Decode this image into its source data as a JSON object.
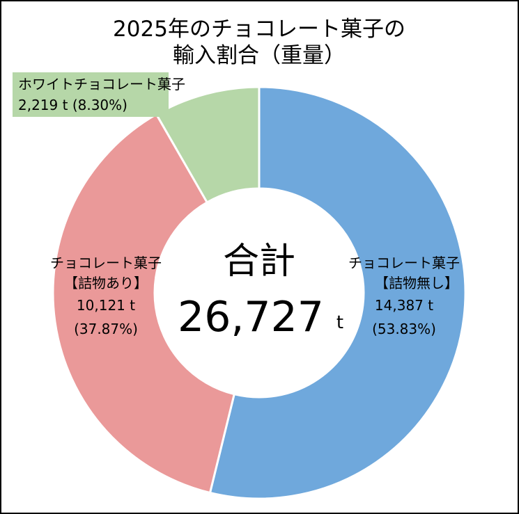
{
  "chart_data": {
    "type": "pie",
    "style": "donut",
    "title_lines": [
      "2025年のチョコレート菓子の",
      "輸入割合（重量）"
    ],
    "center": {
      "label": "合計",
      "value": "26,727",
      "unit": "t",
      "total": 26727
    },
    "series": [
      {
        "name": "チョコレート菓子【詰物無し】",
        "label_lines": [
          "チョコレート菓子",
          "【詰物無し】",
          "14,387 t",
          "(53.83%)"
        ],
        "value": 14387,
        "percent": 53.83,
        "color": "#6fa8dc"
      },
      {
        "name": "チョコレート菓子【詰物あり】",
        "label_lines": [
          "チョコレート菓子",
          "【詰物あり】",
          "10,121 t",
          "(37.87%)"
        ],
        "value": 10121,
        "percent": 37.87,
        "color": "#ea9999"
      },
      {
        "name": "ホワイトチョコレート菓子",
        "label_lines": [
          "ホワイトチョコレート菓子",
          "2,219 t (8.30%)"
        ],
        "value": 2219,
        "percent": 8.3,
        "color": "#b6d7a8"
      }
    ],
    "start_angle": "12 o'clock",
    "direction": "clockwise",
    "border_color": "#ffffff"
  }
}
